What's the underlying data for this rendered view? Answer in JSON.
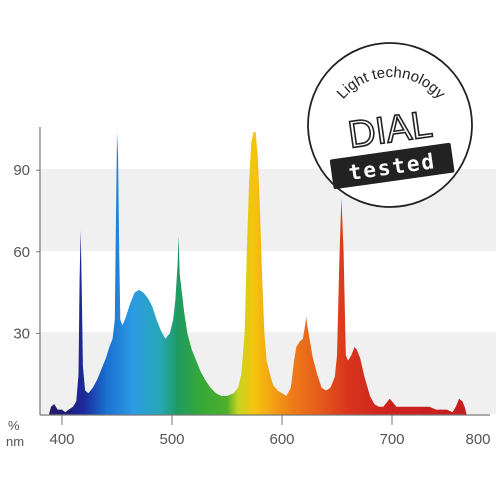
{
  "chart_data": {
    "type": "area",
    "title": "",
    "xlabel": "nm",
    "ylabel": "%",
    "xlim": [
      380,
      800
    ],
    "ylim": [
      0,
      105
    ],
    "x_ticks": [
      400,
      500,
      600,
      700,
      800
    ],
    "y_ticks": [
      30,
      60,
      90
    ],
    "grid": "horizontal bands",
    "fill": "visible-spectrum color gradient by wavelength",
    "series": [
      {
        "points": [
          [
            388,
            0
          ],
          [
            390,
            3
          ],
          [
            393,
            4
          ],
          [
            396,
            2
          ],
          [
            400,
            2
          ],
          [
            403,
            1
          ],
          [
            406,
            2
          ],
          [
            410,
            3
          ],
          [
            413,
            5
          ],
          [
            415,
            15
          ],
          [
            416,
            50
          ],
          [
            417,
            68
          ],
          [
            418,
            45
          ],
          [
            419,
            18
          ],
          [
            421,
            9
          ],
          [
            424,
            8
          ],
          [
            428,
            10
          ],
          [
            432,
            13
          ],
          [
            436,
            17
          ],
          [
            440,
            21
          ],
          [
            443,
            25
          ],
          [
            446,
            28
          ],
          [
            448,
            35
          ],
          [
            449,
            70
          ],
          [
            450,
            104
          ],
          [
            451,
            95
          ],
          [
            452,
            60
          ],
          [
            453,
            35
          ],
          [
            455,
            33
          ],
          [
            458,
            36
          ],
          [
            462,
            41
          ],
          [
            466,
            45
          ],
          [
            470,
            46
          ],
          [
            474,
            45
          ],
          [
            478,
            43
          ],
          [
            482,
            40
          ],
          [
            486,
            35
          ],
          [
            490,
            31
          ],
          [
            494,
            28
          ],
          [
            498,
            30
          ],
          [
            501,
            35
          ],
          [
            503,
            42
          ],
          [
            505,
            55
          ],
          [
            506,
            66
          ],
          [
            507,
            52
          ],
          [
            509,
            45
          ],
          [
            511,
            38
          ],
          [
            514,
            30
          ],
          [
            518,
            24
          ],
          [
            522,
            20
          ],
          [
            526,
            16
          ],
          [
            530,
            13
          ],
          [
            535,
            10
          ],
          [
            540,
            8
          ],
          [
            545,
            7
          ],
          [
            550,
            7
          ],
          [
            556,
            8
          ],
          [
            560,
            10
          ],
          [
            563,
            15
          ],
          [
            566,
            30
          ],
          [
            568,
            60
          ],
          [
            570,
            85
          ],
          [
            572,
            100
          ],
          [
            574,
            104
          ],
          [
            576,
            104
          ],
          [
            578,
            95
          ],
          [
            580,
            75
          ],
          [
            582,
            50
          ],
          [
            584,
            30
          ],
          [
            586,
            20
          ],
          [
            589,
            15
          ],
          [
            592,
            11
          ],
          [
            596,
            9
          ],
          [
            600,
            8
          ],
          [
            604,
            7
          ],
          [
            608,
            10
          ],
          [
            611,
            20
          ],
          [
            613,
            25
          ],
          [
            616,
            27
          ],
          [
            619,
            28
          ],
          [
            621,
            33
          ],
          [
            622,
            36
          ],
          [
            623,
            33
          ],
          [
            625,
            28
          ],
          [
            628,
            21
          ],
          [
            632,
            15
          ],
          [
            636,
            10
          ],
          [
            640,
            9
          ],
          [
            644,
            10
          ],
          [
            648,
            14
          ],
          [
            650,
            22
          ],
          [
            652,
            55
          ],
          [
            654,
            80
          ],
          [
            656,
            60
          ],
          [
            658,
            22
          ],
          [
            660,
            20
          ],
          [
            663,
            22
          ],
          [
            666,
            25
          ],
          [
            668,
            24
          ],
          [
            671,
            21
          ],
          [
            675,
            14
          ],
          [
            680,
            7
          ],
          [
            684,
            4
          ],
          [
            688,
            3
          ],
          [
            692,
            3
          ],
          [
            696,
            5
          ],
          [
            698,
            6
          ],
          [
            700,
            5
          ],
          [
            704,
            3
          ],
          [
            710,
            3
          ],
          [
            718,
            3
          ],
          [
            726,
            3
          ],
          [
            734,
            3
          ],
          [
            740,
            2
          ],
          [
            745,
            2
          ],
          [
            750,
            2
          ],
          [
            755,
            1
          ],
          [
            758,
            3
          ],
          [
            761,
            6
          ],
          [
            764,
            5
          ],
          [
            766,
            3
          ],
          [
            768,
            0
          ]
        ]
      }
    ]
  },
  "badge": {
    "top_text": "Light technology",
    "middle_text": "DIAL",
    "bottom_text": "tested"
  }
}
